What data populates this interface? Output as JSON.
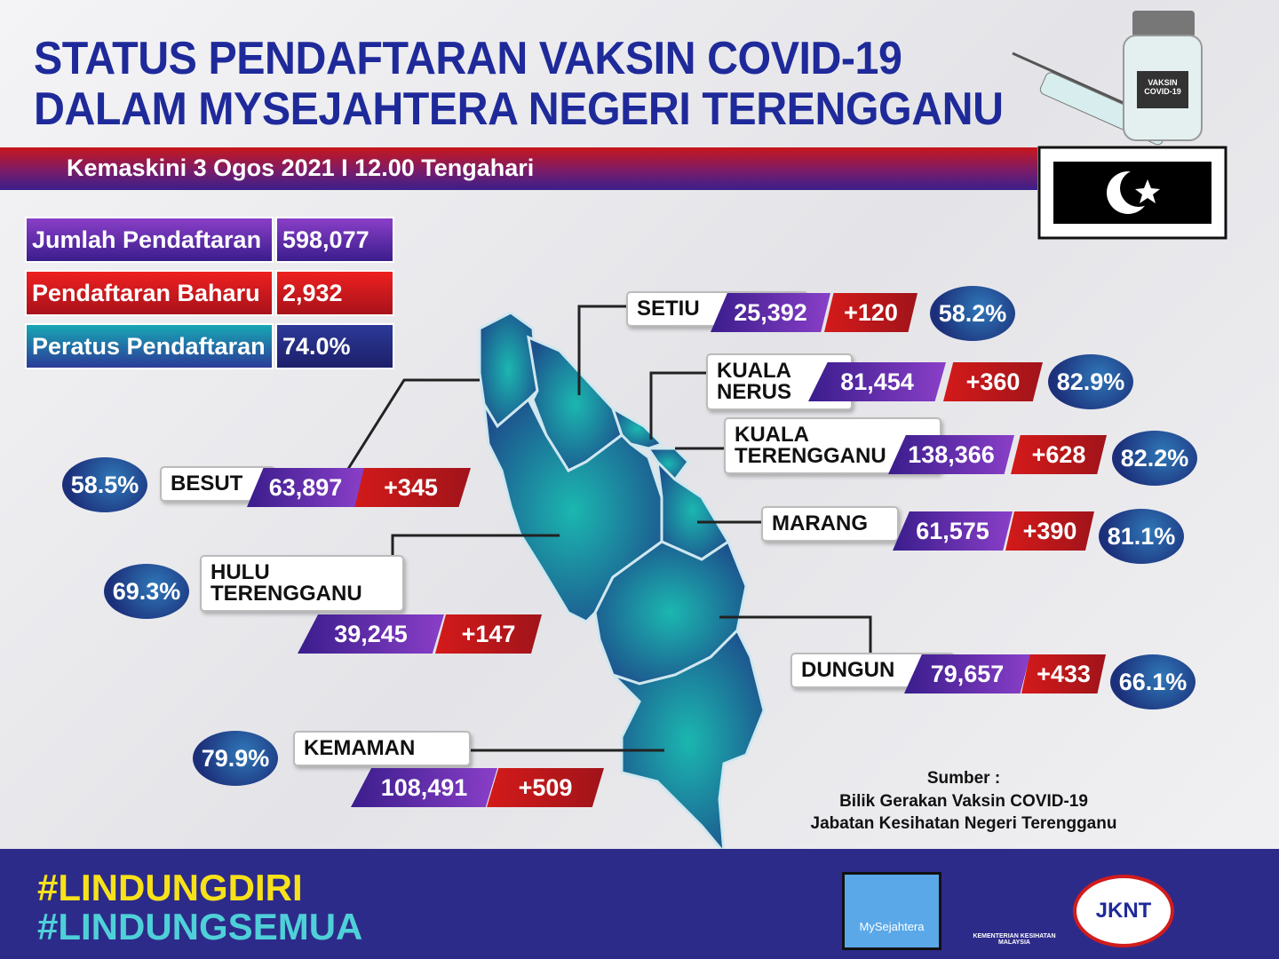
{
  "header": {
    "title_lines": [
      "STATUS PENDAFTARAN VAKSIN COVID-19",
      "DALAM MYSEJAHTERA NEGERI TERENGGANU"
    ],
    "updated": "Kemaskini 3 Ogos 2021 I 12.00 Tengahari",
    "vial_label": "VAKSIN COVID-19"
  },
  "summary": [
    {
      "label": "Jumlah Pendaftaran",
      "value": "598,077"
    },
    {
      "label": "Pendaftaran Baharu",
      "value": "2,932"
    },
    {
      "label": "Peratus Pendaftaran",
      "value": "74.0%"
    }
  ],
  "districts": [
    {
      "name_lines": [
        "SETIU"
      ],
      "registered": "25,392",
      "new": "+120",
      "percent": "58.2%"
    },
    {
      "name_lines": [
        "KUALA",
        "NERUS"
      ],
      "registered": "81,454",
      "new": "+360",
      "percent": "82.9%"
    },
    {
      "name_lines": [
        "KUALA",
        "TERENGGANU"
      ],
      "registered": "138,366",
      "new": "+628",
      "percent": "82.2%"
    },
    {
      "name_lines": [
        "MARANG"
      ],
      "registered": "61,575",
      "new": "+390",
      "percent": "81.1%"
    },
    {
      "name_lines": [
        "DUNGUN"
      ],
      "registered": "79,657",
      "new": "+433",
      "percent": "66.1%"
    },
    {
      "name_lines": [
        "BESUT"
      ],
      "registered": "63,897",
      "new": "+345",
      "percent": "58.5%"
    },
    {
      "name_lines": [
        "HULU",
        "TERENGGANU"
      ],
      "registered": "39,245",
      "new": "+147",
      "percent": "69.3%"
    },
    {
      "name_lines": [
        "KEMAMAN"
      ],
      "registered": "108,491",
      "new": "+509",
      "percent": "79.9%"
    }
  ],
  "source": {
    "heading": "Sumber :",
    "lines": [
      "Bilik Gerakan  Vaksin COVID-19",
      "Jabatan Kesihatan Negeri Terengganu"
    ]
  },
  "footer": {
    "hashtags": [
      "#LINDUNGDIRI",
      "#LINDUNGSEMUA"
    ],
    "logos": [
      "MySejahtera",
      "KEMENTERIAN KESIHATAN MALAYSIA",
      "JKNT"
    ]
  }
}
